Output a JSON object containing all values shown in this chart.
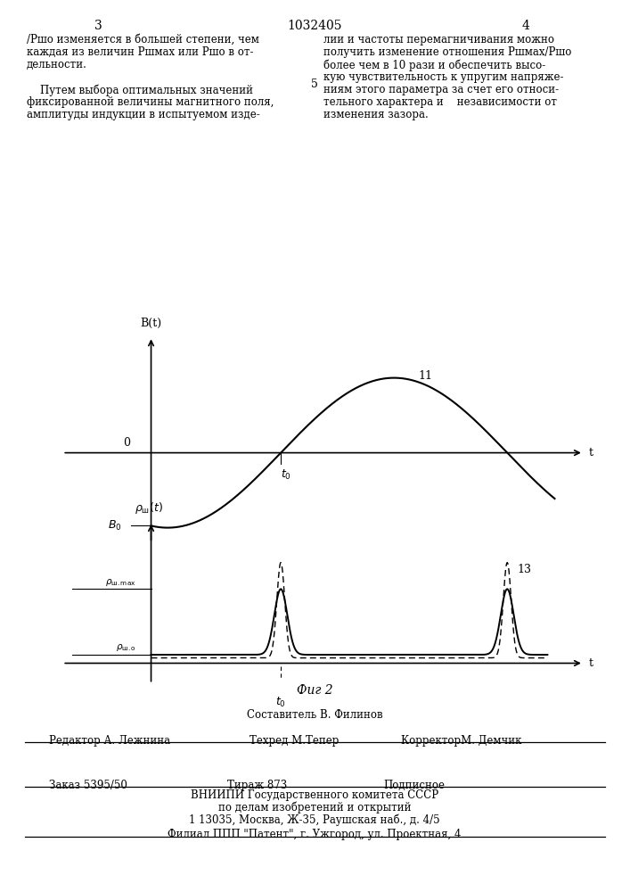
{
  "page_title": "1032405",
  "col_left": "3",
  "col_right": "4",
  "col_mid": "5",
  "left_lines": [
    "/Ршо изменяется в большей степени, чем",
    "каждая из величин Ршмах или Ршо в от-",
    "дельности.",
    "",
    "    Путем выбора оптимальных значений",
    "фиксированной величины магнитного поля,",
    "амплитуды индукции в испытуемом изде-"
  ],
  "right_lines": [
    "лии и частоты перемагничивания можно",
    "получить изменение отношения Ршмах/Ршо",
    "более чем в 10 рази и обеспечить высо-",
    "кую чувствительность к упругим напряже-",
    "ниям этого параметра за счет его относи-",
    "тельного характера и    независимости от",
    "изменения зазора."
  ],
  "fig_caption": "Фиг 2",
  "footer_compiler": "Составитель В. Филинов",
  "footer_editor": "Редактор А. Лежнина",
  "footer_techred": "Техред М.Тепер",
  "footer_corrector": "КорректорМ. Демчик",
  "footer_order": "Заказ 5395/50",
  "footer_tirazh": "Тираж 873",
  "footer_podpisnoe": "Подписное",
  "footer_vniiipi": "ВНИИПИ Государственного комитета СССР",
  "footer_po_delam": "по делам изобретений и открытий",
  "footer_address": "1 13035, Москва, Ж-35, Раушская наб., д. 4/5",
  "footer_filial": "Филиал ППП \"Патент\", г. Ужгород, ул. Проектная, 4"
}
